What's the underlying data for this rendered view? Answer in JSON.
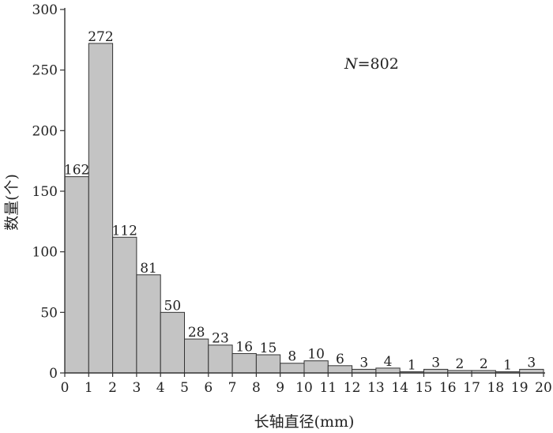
{
  "chart_data": {
    "type": "bar",
    "x_ticks": [
      "0",
      "1",
      "2",
      "3",
      "4",
      "5",
      "6",
      "7",
      "8",
      "9",
      "10",
      "11",
      "12",
      "13",
      "14",
      "15",
      "16",
      "17",
      "18",
      "19",
      "20"
    ],
    "bin_edges": [
      0,
      1,
      2,
      3,
      4,
      5,
      6,
      7,
      8,
      9,
      10,
      11,
      12,
      13,
      14,
      15,
      16,
      17,
      18,
      19,
      20
    ],
    "values": [
      162,
      272,
      112,
      81,
      50,
      28,
      23,
      16,
      15,
      8,
      10,
      6,
      3,
      4,
      1,
      3,
      2,
      2,
      1,
      3
    ],
    "data_labels": [
      "162",
      "272",
      "112",
      "81",
      "50",
      "28",
      "23",
      "16",
      "15",
      "8",
      "10",
      "6",
      "3",
      "4",
      "1",
      "3",
      "2",
      "2",
      "1",
      "3"
    ],
    "y_ticks": [
      "0",
      "50",
      "100",
      "150",
      "200",
      "250",
      "300"
    ],
    "ylim": [
      0,
      300
    ],
    "xlim": [
      0,
      20
    ],
    "xlabel": "长轴直径(mm)",
    "ylabel": "数量(个)",
    "annotation": {
      "italic": "N",
      "rest": "=802"
    },
    "grid": false,
    "bar_color": "#c4c4c4"
  }
}
